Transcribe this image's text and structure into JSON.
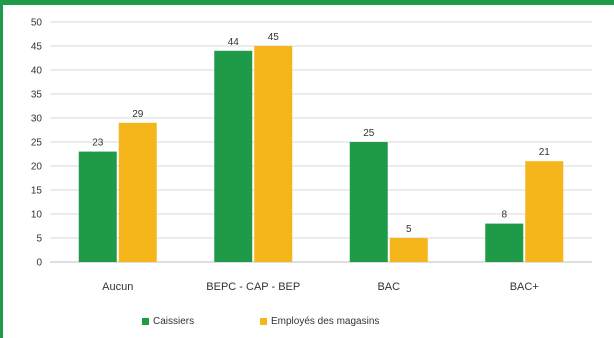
{
  "chart_data": {
    "type": "bar",
    "categories": [
      "Aucun",
      "BEPC - CAP - BEP",
      "BAC",
      "BAC+"
    ],
    "series": [
      {
        "name": "Caissiers",
        "values": [
          23,
          44,
          25,
          8
        ],
        "color": "#1f9a48"
      },
      {
        "name": "Employés des magasins",
        "values": [
          29,
          45,
          5,
          21
        ],
        "color": "#f5b61c"
      }
    ],
    "ylim": [
      0,
      50
    ],
    "yticks": [
      0,
      5,
      10,
      15,
      20,
      25,
      30,
      35,
      40,
      45,
      50
    ],
    "grid": true,
    "legend_position": "bottom-left",
    "title": "",
    "xlabel": "",
    "ylabel": ""
  },
  "colors": {
    "frame_accent": "#1f9a48",
    "grid": "#d9d9d9",
    "axis": "#bfbfbf"
  }
}
